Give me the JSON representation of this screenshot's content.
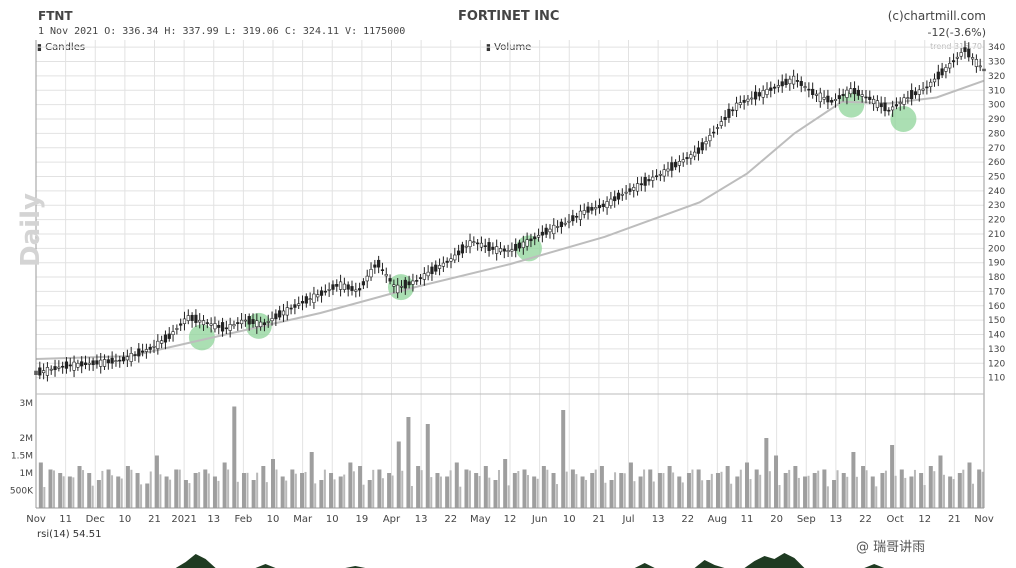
{
  "header": {
    "ticker": "FTNT",
    "company": "FORTINET INC",
    "source": "(c)chartmill.com",
    "ohlc_line": "1 Nov 2021   O: 336.34  H: 337.99  L: 319.06  C: 324.11    V: 1175000",
    "change": "-12(-3.6%)",
    "trend_label": "trend 316.70",
    "period_label": "Daily"
  },
  "legend": {
    "candles": "Candles",
    "volume": "Volume",
    "rsi": "rsi(14) 54.51"
  },
  "watermark": "@ 瑞哥讲雨",
  "colors": {
    "candle": "#222222",
    "trend": "#bdbdbd",
    "volume": "#9e9e9e",
    "highlight": "#8fd49a",
    "rsi": "#1f3b22",
    "grid": "#e2e2e2"
  },
  "chart_data": [
    {
      "type": "line",
      "title": "FORTINET INC",
      "ylim": [
        100,
        345
      ],
      "y_ticks": [
        110,
        120,
        130,
        140,
        150,
        160,
        170,
        180,
        190,
        200,
        210,
        220,
        230,
        240,
        250,
        260,
        270,
        280,
        290,
        300,
        310,
        320,
        330,
        340
      ],
      "x_tick_labels": [
        "Nov",
        "11",
        "Dec",
        "10",
        "21",
        "2021",
        "13",
        "Feb",
        "10",
        "Mar",
        "10",
        "19",
        "Apr",
        "13",
        "22",
        "May",
        "12",
        "Jun",
        "10",
        "21",
        "Jul",
        "13",
        "22",
        "Aug",
        "11",
        "20",
        "Sep",
        "13",
        "22",
        "Oct",
        "12",
        "21",
        "Nov"
      ],
      "series": [
        {
          "name": "Candles",
          "x": [
            0,
            0.03,
            0.06,
            0.09,
            0.12,
            0.14,
            0.16,
            0.18,
            0.2,
            0.22,
            0.24,
            0.26,
            0.28,
            0.3,
            0.32,
            0.34,
            0.36,
            0.38,
            0.4,
            0.42,
            0.44,
            0.46,
            0.48,
            0.5,
            0.52,
            0.54,
            0.56,
            0.58,
            0.6,
            0.62,
            0.64,
            0.66,
            0.68,
            0.7,
            0.72,
            0.74,
            0.76,
            0.78,
            0.8,
            0.82,
            0.84,
            0.86,
            0.88,
            0.9,
            0.92,
            0.94,
            0.96,
            0.98,
            1.0
          ],
          "values": [
            113,
            118,
            120,
            122,
            130,
            138,
            152,
            148,
            144,
            150,
            147,
            155,
            162,
            168,
            175,
            170,
            190,
            172,
            177,
            185,
            193,
            205,
            200,
            198,
            205,
            212,
            218,
            226,
            230,
            238,
            245,
            252,
            260,
            268,
            285,
            300,
            306,
            312,
            318,
            308,
            302,
            310,
            304,
            296,
            305,
            312,
            325,
            338,
            324
          ]
        },
        {
          "name": "trend",
          "x": [
            0,
            0.1,
            0.2,
            0.3,
            0.4,
            0.5,
            0.6,
            0.7,
            0.75,
            0.8,
            0.85,
            0.9,
            0.95,
            1.0
          ],
          "values": [
            123,
            125,
            140,
            155,
            173,
            189,
            208,
            232,
            252,
            280,
            302,
            301,
            305,
            316.7
          ]
        }
      ],
      "highlights": [
        {
          "x": 0.175,
          "y": 138
        },
        {
          "x": 0.235,
          "y": 146
        },
        {
          "x": 0.385,
          "y": 173
        },
        {
          "x": 0.52,
          "y": 200
        },
        {
          "x": 0.86,
          "y": 300
        },
        {
          "x": 0.915,
          "y": 290
        }
      ]
    },
    {
      "type": "bar",
      "title": "Volume",
      "ylim": [
        0,
        3200000
      ],
      "y_ticks": [
        500000,
        1000000,
        1500000,
        2000000,
        3000000
      ],
      "y_tick_labels": [
        "500K",
        "1M",
        "1.5M",
        "2M",
        "3M"
      ],
      "values": [
        1.3,
        1.1,
        1.0,
        0.9,
        1.2,
        1.0,
        0.8,
        1.1,
        0.9,
        1.2,
        1.0,
        0.7,
        1.5,
        0.9,
        1.1,
        0.8,
        1.0,
        1.1,
        0.9,
        1.3,
        2.9,
        1.0,
        0.8,
        1.2,
        1.4,
        0.9,
        1.1,
        1.0,
        1.6,
        0.8,
        1.0,
        0.9,
        1.3,
        1.2,
        0.8,
        1.1,
        1.0,
        1.9,
        2.6,
        1.2,
        2.4,
        1.0,
        0.9,
        1.3,
        1.1,
        1.0,
        1.2,
        0.8,
        1.4,
        1.0,
        1.1,
        0.9,
        1.2,
        1.0,
        2.8,
        1.1,
        0.9,
        1.0,
        1.2,
        0.8,
        1.0,
        1.3,
        0.9,
        1.1,
        1.0,
        1.2,
        0.9,
        1.0,
        1.1,
        0.8,
        1.0,
        1.2,
        0.9,
        1.3,
        1.1,
        2.0,
        1.5,
        1.0,
        1.2,
        0.9,
        1.0,
        1.1,
        0.8,
        1.0,
        1.6,
        1.2,
        0.9,
        1.0,
        1.8,
        1.1,
        0.9,
        1.0,
        1.2,
        1.5,
        0.9,
        1.0,
        1.3,
        1.1
      ]
    },
    {
      "type": "area",
      "title": "rsi(14) 54.51",
      "values": [
        0,
        0,
        0,
        0,
        0,
        0,
        0,
        0,
        0,
        0,
        0,
        0,
        0,
        0,
        0,
        6,
        14,
        9,
        0,
        0,
        0,
        0,
        0,
        4,
        0,
        0,
        0,
        0,
        0,
        0,
        0,
        0,
        2,
        0,
        0,
        0,
        0,
        0,
        0,
        0,
        0,
        0,
        0,
        0,
        0,
        0,
        0,
        0,
        0,
        0,
        0,
        0,
        0,
        0,
        0,
        0,
        0,
        0,
        0,
        0,
        0,
        5,
        0,
        0,
        0,
        0,
        0,
        8,
        3,
        0,
        0,
        0,
        7,
        12,
        9,
        15,
        10,
        0,
        0,
        0,
        0,
        0,
        0,
        0,
        4,
        0,
        0,
        0,
        0,
        0,
        0,
        0,
        0,
        0,
        0,
        0
      ]
    }
  ]
}
